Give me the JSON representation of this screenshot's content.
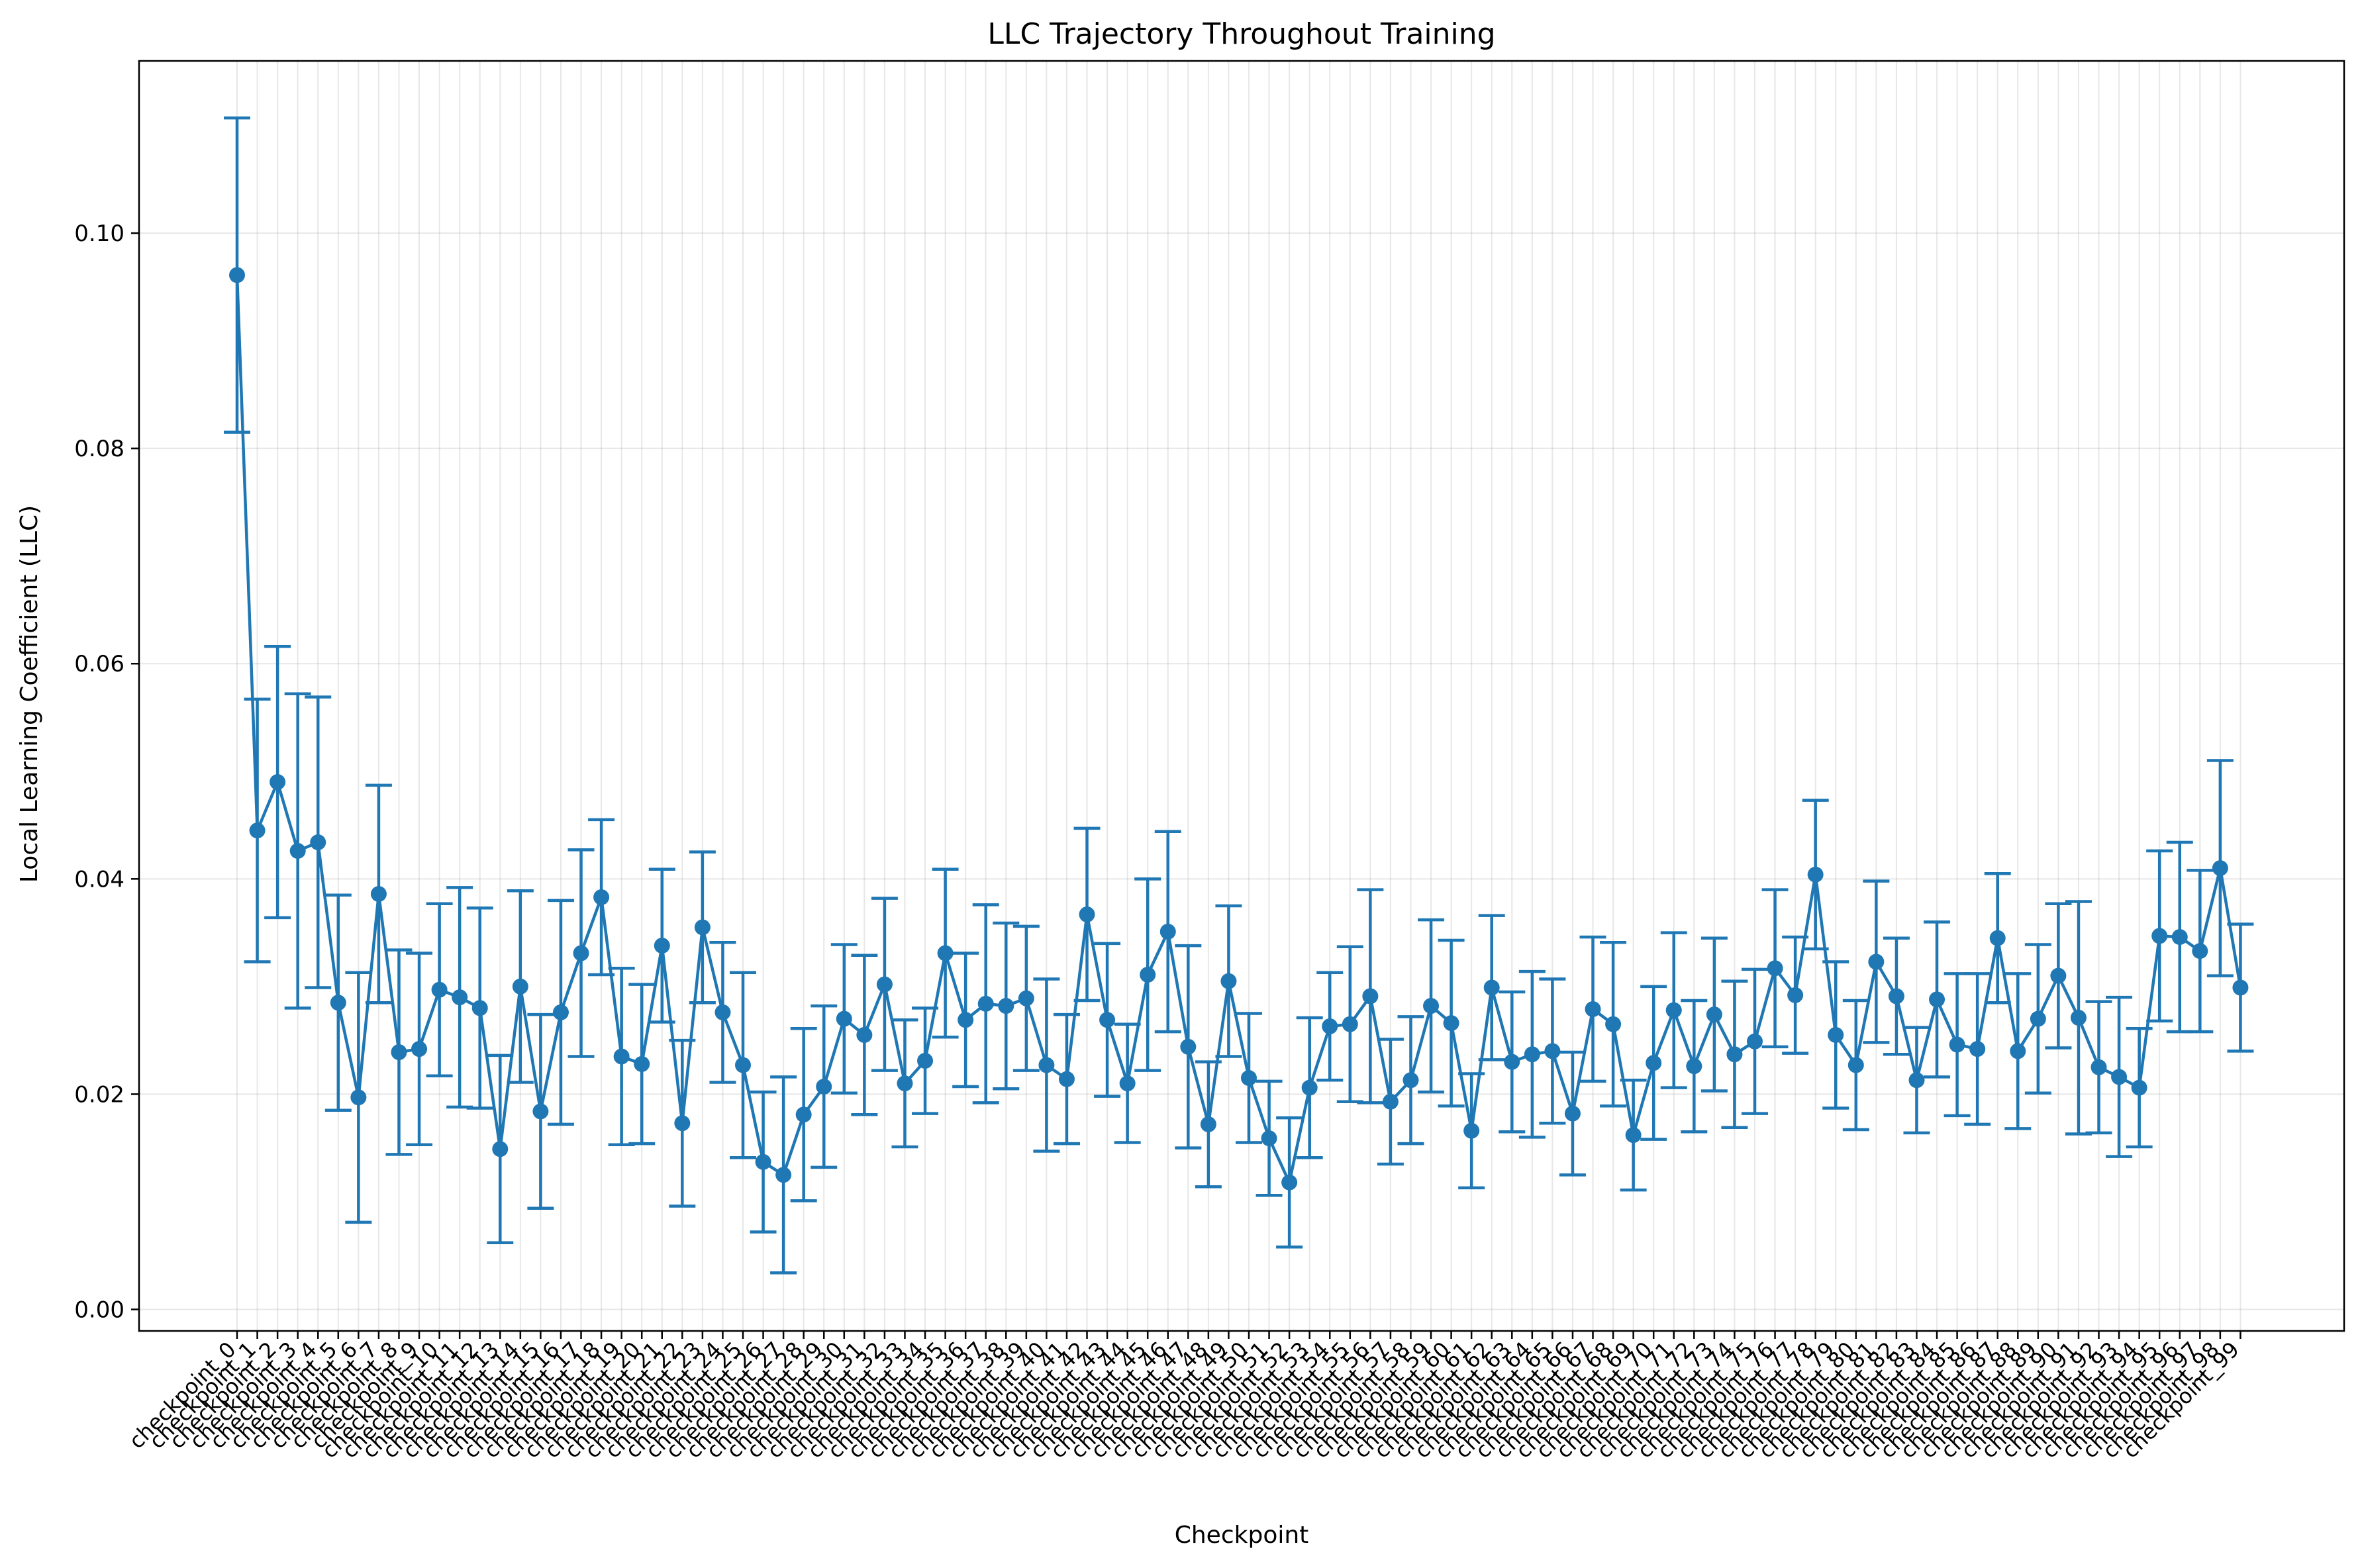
{
  "chart_data": {
    "type": "line",
    "title": "LLC Trajectory Throughout Training",
    "xlabel": "Checkpoint",
    "ylabel": "Local Learning Coefficient (LLC)",
    "ylim": [
      -0.002,
      0.116
    ],
    "yticks": [
      0.0,
      0.02,
      0.04,
      0.06,
      0.08,
      0.1
    ],
    "ytick_labels": [
      "0.00",
      "0.02",
      "0.04",
      "0.06",
      "0.08",
      "0.10"
    ],
    "grid": true,
    "color": "#1f77b4",
    "categories": [
      "checkpoint_0",
      "checkpoint_1",
      "checkpoint_2",
      "checkpoint_3",
      "checkpoint_4",
      "checkpoint_5",
      "checkpoint_6",
      "checkpoint_7",
      "checkpoint_8",
      "checkpoint_9",
      "checkpoint_10",
      "checkpoint_11",
      "checkpoint_12",
      "checkpoint_13",
      "checkpoint_14",
      "checkpoint_15",
      "checkpoint_16",
      "checkpoint_17",
      "checkpoint_18",
      "checkpoint_19",
      "checkpoint_20",
      "checkpoint_21",
      "checkpoint_22",
      "checkpoint_23",
      "checkpoint_24",
      "checkpoint_25",
      "checkpoint_26",
      "checkpoint_27",
      "checkpoint_28",
      "checkpoint_29",
      "checkpoint_30",
      "checkpoint_31",
      "checkpoint_32",
      "checkpoint_33",
      "checkpoint_34",
      "checkpoint_35",
      "checkpoint_36",
      "checkpoint_37",
      "checkpoint_38",
      "checkpoint_39",
      "checkpoint_40",
      "checkpoint_41",
      "checkpoint_42",
      "checkpoint_43",
      "checkpoint_44",
      "checkpoint_45",
      "checkpoint_46",
      "checkpoint_47",
      "checkpoint_48",
      "checkpoint_49",
      "checkpoint_50",
      "checkpoint_51",
      "checkpoint_52",
      "checkpoint_53",
      "checkpoint_54",
      "checkpoint_55",
      "checkpoint_56",
      "checkpoint_57",
      "checkpoint_58",
      "checkpoint_59",
      "checkpoint_60",
      "checkpoint_61",
      "checkpoint_62",
      "checkpoint_63",
      "checkpoint_64",
      "checkpoint_65",
      "checkpoint_66",
      "checkpoint_67",
      "checkpoint_68",
      "checkpoint_69",
      "checkpoint_70",
      "checkpoint_71",
      "checkpoint_72",
      "checkpoint_73",
      "checkpoint_74",
      "checkpoint_75",
      "checkpoint_76",
      "checkpoint_77",
      "checkpoint_78",
      "checkpoint_79",
      "checkpoint_80",
      "checkpoint_81",
      "checkpoint_82",
      "checkpoint_83",
      "checkpoint_84",
      "checkpoint_85",
      "checkpoint_86",
      "checkpoint_87",
      "checkpoint_88",
      "checkpoint_89",
      "checkpoint_90",
      "checkpoint_91",
      "checkpoint_92",
      "checkpoint_93",
      "checkpoint_94",
      "checkpoint_95",
      "checkpoint_96",
      "checkpoint_97",
      "checkpoint_98",
      "checkpoint_99"
    ],
    "values": [
      0.0961,
      0.0445,
      0.049,
      0.0426,
      0.0434,
      0.0285,
      0.0197,
      0.0386,
      0.0239,
      0.0242,
      0.0297,
      0.029,
      0.028,
      0.0149,
      0.03,
      0.0184,
      0.0276,
      0.0331,
      0.0383,
      0.0235,
      0.0228,
      0.0338,
      0.0173,
      0.0355,
      0.0276,
      0.0227,
      0.0137,
      0.0125,
      0.0181,
      0.0207,
      0.027,
      0.0255,
      0.0302,
      0.021,
      0.0231,
      0.0331,
      0.0269,
      0.0284,
      0.0282,
      0.0289,
      0.0227,
      0.0214,
      0.0367,
      0.0269,
      0.021,
      0.0311,
      0.0351,
      0.0244,
      0.0172,
      0.0305,
      0.0215,
      0.0159,
      0.0118,
      0.0206,
      0.0263,
      0.0265,
      0.0291,
      0.0193,
      0.0213,
      0.0282,
      0.0266,
      0.0166,
      0.0299,
      0.023,
      0.0237,
      0.024,
      0.0182,
      0.0279,
      0.0265,
      0.0162,
      0.0229,
      0.0278,
      0.0226,
      0.0274,
      0.0237,
      0.0249,
      0.0317,
      0.0292,
      0.0404,
      0.0255,
      0.0227,
      0.0323,
      0.0291,
      0.0213,
      0.0288,
      0.0246,
      0.0242,
      0.0345,
      0.024,
      0.027,
      0.031,
      0.0271,
      0.0225,
      0.0216,
      0.0206,
      0.0347,
      0.0346,
      0.0333,
      0.041,
      0.0299
    ],
    "errors": [
      0.0146,
      0.0122,
      0.0126,
      0.0146,
      0.0135,
      0.01,
      0.0116,
      0.0101,
      0.0095,
      0.0089,
      0.008,
      0.0102,
      0.0093,
      0.0087,
      0.0089,
      0.009,
      0.0104,
      0.0096,
      0.0072,
      0.0082,
      0.0074,
      0.0071,
      0.0077,
      0.007,
      0.0065,
      0.0086,
      0.0065,
      0.0091,
      0.008,
      0.0075,
      0.0069,
      0.0074,
      0.008,
      0.0059,
      0.0049,
      0.0078,
      0.0062,
      0.0092,
      0.0077,
      0.0067,
      0.008,
      0.006,
      0.008,
      0.0071,
      0.0055,
      0.0089,
      0.0093,
      0.0094,
      0.0058,
      0.007,
      0.006,
      0.0053,
      0.006,
      0.0065,
      0.005,
      0.0072,
      0.0099,
      0.0058,
      0.0059,
      0.008,
      0.0077,
      0.0053,
      0.0067,
      0.0065,
      0.0077,
      0.0067,
      0.0057,
      0.0067,
      0.0076,
      0.0051,
      0.0071,
      0.0072,
      0.0061,
      0.0071,
      0.0068,
      0.0067,
      0.0073,
      0.0054,
      0.0069,
      0.0068,
      0.006,
      0.0075,
      0.0054,
      0.0049,
      0.0072,
      0.0066,
      0.007,
      0.006,
      0.0072,
      0.0069,
      0.0067,
      0.0108,
      0.0061,
      0.0074,
      0.0055,
      0.0079,
      0.0088,
      0.0075,
      0.01,
      0.0059
    ]
  }
}
